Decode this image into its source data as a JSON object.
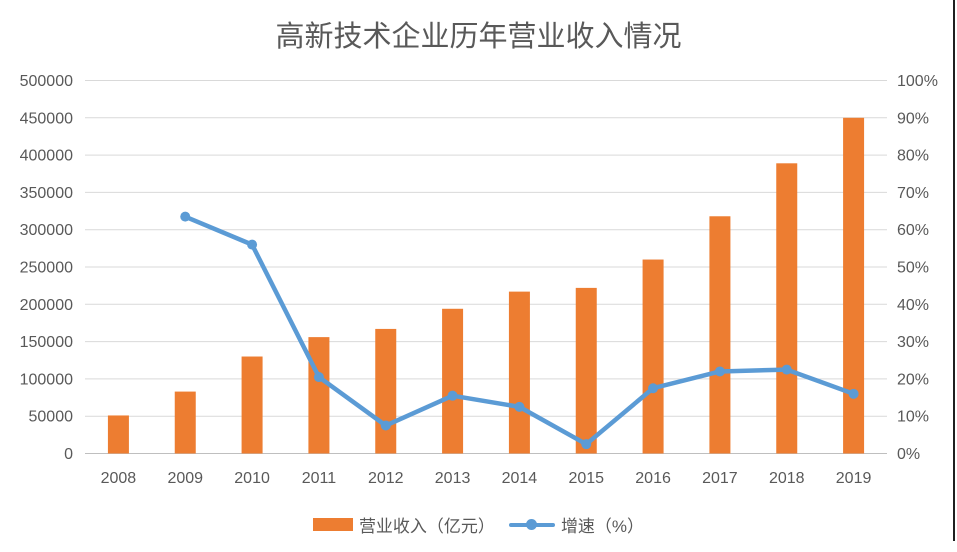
{
  "title": "高新技术企业历年营业收入情况",
  "colors": {
    "bar": "#ED7D31",
    "line": "#5B9BD5",
    "grid": "#D9D9D9",
    "axis_line": "#BFBFBF",
    "text": "#595959",
    "border": "#1F1F1F"
  },
  "chart_data": {
    "type": "bar",
    "subtype": "combo-bar-line-dual-axis",
    "title": "高新技术企业历年营业收入情况",
    "grid": true,
    "legend_position": "bottom",
    "categories": [
      "2008",
      "2009",
      "2010",
      "2011",
      "2012",
      "2013",
      "2014",
      "2015",
      "2016",
      "2017",
      "2018",
      "2019"
    ],
    "series": [
      {
        "name": "营业收入（亿元）",
        "render": "bar",
        "axis": "left",
        "color": "#ED7D31",
        "values": [
          51000,
          83000,
          130000,
          156000,
          167000,
          194000,
          217000,
          222000,
          260000,
          318000,
          389000,
          450000
        ]
      },
      {
        "name": "增速（%）",
        "render": "line",
        "axis": "right",
        "color": "#5B9BD5",
        "values": [
          null,
          63.5,
          56,
          20.5,
          7.5,
          15.5,
          12.5,
          2.5,
          17.5,
          22,
          22.5,
          16
        ]
      }
    ],
    "left_axis": {
      "min": 0,
      "max": 500000,
      "step": 50000,
      "tick_labels": [
        "0",
        "50000",
        "100000",
        "150000",
        "200000",
        "250000",
        "300000",
        "350000",
        "400000",
        "450000",
        "500000"
      ]
    },
    "right_axis": {
      "min": 0,
      "max": 100,
      "step": 10,
      "tick_labels": [
        "0%",
        "10%",
        "20%",
        "30%",
        "40%",
        "50%",
        "60%",
        "70%",
        "80%",
        "90%",
        "100%"
      ]
    }
  }
}
